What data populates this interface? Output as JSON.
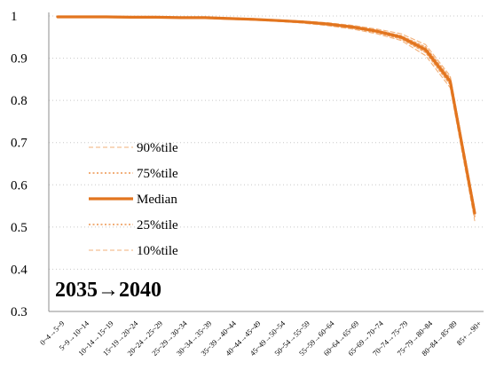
{
  "chart_data": {
    "type": "line",
    "annotation": "2035→2040",
    "categories": [
      "0~4→5~9",
      "5~9→10~14",
      "10~14→15~19",
      "15~19→20~24",
      "20~24→25~29",
      "25~29→30~34",
      "30~34→35~39",
      "35~39→40~44",
      "40~44→45~49",
      "45~49→50~54",
      "50~54→55~59",
      "55~59→60~64",
      "60~64→65~69",
      "65~69→70~74",
      "70~74→75~79",
      "75~79→80~84",
      "80~84→85~89",
      "85+→90+"
    ],
    "ylim": [
      0.3,
      1.0
    ],
    "yticks": [
      "0.3",
      "0.4",
      "0.5",
      "0.6",
      "0.7",
      "0.8",
      "0.9",
      "1"
    ],
    "grid": "horizontal dotted",
    "legend_position": "left",
    "series": [
      {
        "name": "90%tile",
        "style": "dashed-thin",
        "color": "#f2b079",
        "values": [
          0.998,
          0.999,
          0.999,
          0.998,
          0.998,
          0.998,
          0.997,
          0.996,
          0.994,
          0.991,
          0.988,
          0.984,
          0.978,
          0.969,
          0.958,
          0.932,
          0.858,
          0.545
        ]
      },
      {
        "name": "75%tile",
        "style": "dotted",
        "color": "#f0a468",
        "values": [
          0.998,
          0.999,
          0.999,
          0.998,
          0.997,
          0.997,
          0.996,
          0.995,
          0.993,
          0.99,
          0.987,
          0.982,
          0.976,
          0.966,
          0.953,
          0.926,
          0.852,
          0.54
        ]
      },
      {
        "name": "Median",
        "style": "solid",
        "color": "#e2751f",
        "values": [
          0.998,
          0.998,
          0.998,
          0.997,
          0.997,
          0.996,
          0.996,
          0.994,
          0.992,
          0.989,
          0.986,
          0.981,
          0.974,
          0.964,
          0.95,
          0.92,
          0.845,
          0.533
        ]
      },
      {
        "name": "25%tile",
        "style": "dotted",
        "color": "#f0a468",
        "values": [
          0.997,
          0.998,
          0.998,
          0.997,
          0.996,
          0.996,
          0.995,
          0.993,
          0.991,
          0.988,
          0.984,
          0.979,
          0.972,
          0.961,
          0.946,
          0.914,
          0.838,
          0.525
        ]
      },
      {
        "name": "10%tile",
        "style": "dashed-thin",
        "color": "#f2b079",
        "values": [
          0.997,
          0.998,
          0.997,
          0.996,
          0.996,
          0.995,
          0.994,
          0.992,
          0.99,
          0.987,
          0.983,
          0.977,
          0.969,
          0.958,
          0.942,
          0.906,
          0.83,
          0.515
        ]
      }
    ]
  }
}
